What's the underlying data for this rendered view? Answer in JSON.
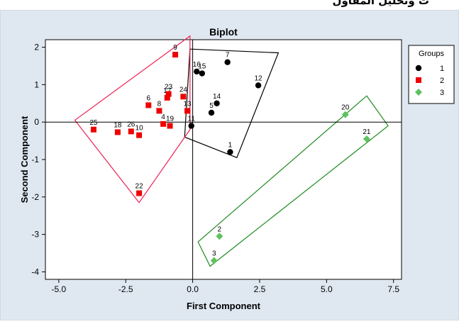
{
  "header_fragment": "ت وتحليل المقاول",
  "chart_data": {
    "type": "scatter",
    "title": "Biplot",
    "xlabel": "First Component",
    "ylabel": "Second Component",
    "xlim": [
      -5.5,
      7.8
    ],
    "ylim": [
      -4.2,
      2.2
    ],
    "xticks": [
      "-5.0",
      "-2.5",
      "0.0",
      "2.5",
      "5.0",
      "7.5"
    ],
    "xtick_values": [
      -5,
      -2.5,
      0,
      2.5,
      5,
      7.5
    ],
    "yticks": [
      "2",
      "1",
      "0",
      "-1",
      "-2",
      "-3",
      "-4"
    ],
    "ytick_values": [
      2,
      1,
      0,
      -1,
      -2,
      -3,
      -4
    ],
    "grid": false,
    "reference_lines": {
      "x": 0,
      "y": 0
    },
    "legend": {
      "title": "Groups",
      "placement": "right",
      "entries": [
        {
          "label": "1",
          "marker": "circle",
          "color": "#000000"
        },
        {
          "label": "2",
          "marker": "square",
          "color": "#ee0000"
        },
        {
          "label": "3",
          "marker": "diamond",
          "color": "#5ec25e"
        }
      ]
    },
    "series": [
      {
        "name": "1",
        "marker": "circle",
        "color": "#000000",
        "points": [
          {
            "label": "1",
            "x": 1.4,
            "y": -0.8
          },
          {
            "label": "5",
            "x": 0.7,
            "y": 0.25
          },
          {
            "label": "7",
            "x": 1.3,
            "y": 1.6
          },
          {
            "label": "11",
            "x": -0.05,
            "y": -0.1
          },
          {
            "label": "12",
            "x": 2.45,
            "y": 0.98
          },
          {
            "label": "14",
            "x": 0.9,
            "y": 0.5
          },
          {
            "label": "15",
            "x": 0.35,
            "y": 1.3
          },
          {
            "label": "16",
            "x": 0.15,
            "y": 1.35
          }
        ]
      },
      {
        "name": "2",
        "marker": "square",
        "color": "#ee0000",
        "points": [
          {
            "label": "4",
            "x": -1.1,
            "y": -0.05
          },
          {
            "label": "6",
            "x": -1.65,
            "y": 0.45
          },
          {
            "label": "8",
            "x": -1.25,
            "y": 0.3
          },
          {
            "label": "9",
            "x": -0.65,
            "y": 1.8
          },
          {
            "label": "10",
            "x": -2.0,
            "y": -0.35
          },
          {
            "label": "13",
            "x": -0.2,
            "y": 0.3
          },
          {
            "label": "17",
            "x": -0.95,
            "y": 0.65
          },
          {
            "label": "18",
            "x": -2.8,
            "y": -0.27
          },
          {
            "label": "19",
            "x": -0.85,
            "y": -0.1
          },
          {
            "label": "22",
            "x": -2.0,
            "y": -1.9
          },
          {
            "label": "23",
            "x": -0.9,
            "y": 0.75
          },
          {
            "label": "24",
            "x": -0.35,
            "y": 0.68
          },
          {
            "label": "25",
            "x": -3.7,
            "y": -0.2
          },
          {
            "label": "26",
            "x": -2.3,
            "y": -0.25
          }
        ]
      },
      {
        "name": "3",
        "marker": "diamond",
        "color": "#5ec25e",
        "points": [
          {
            "label": "2",
            "x": 1.0,
            "y": -3.05
          },
          {
            "label": "3",
            "x": 0.8,
            "y": -3.7
          },
          {
            "label": "20",
            "x": 5.7,
            "y": 0.2
          },
          {
            "label": "21",
            "x": 6.5,
            "y": -0.45
          }
        ]
      }
    ],
    "group_outlines": [
      {
        "group": "1",
        "color": "#000000",
        "vertices": [
          [
            -0.1,
            1.95
          ],
          [
            3.2,
            1.85
          ],
          [
            1.65,
            -0.95
          ],
          [
            -0.3,
            -0.4
          ]
        ]
      },
      {
        "group": "2",
        "color": "#ee2255",
        "vertices": [
          [
            -4.4,
            0.05
          ],
          [
            -0.1,
            2.3
          ],
          [
            -0.1,
            -0.2
          ],
          [
            -2.0,
            -2.15
          ]
        ]
      },
      {
        "group": "3",
        "color": "#228b22",
        "vertices": [
          [
            6.5,
            0.7
          ],
          [
            7.3,
            -0.1
          ],
          [
            0.65,
            -3.85
          ],
          [
            0.2,
            -3.2
          ]
        ]
      }
    ]
  }
}
